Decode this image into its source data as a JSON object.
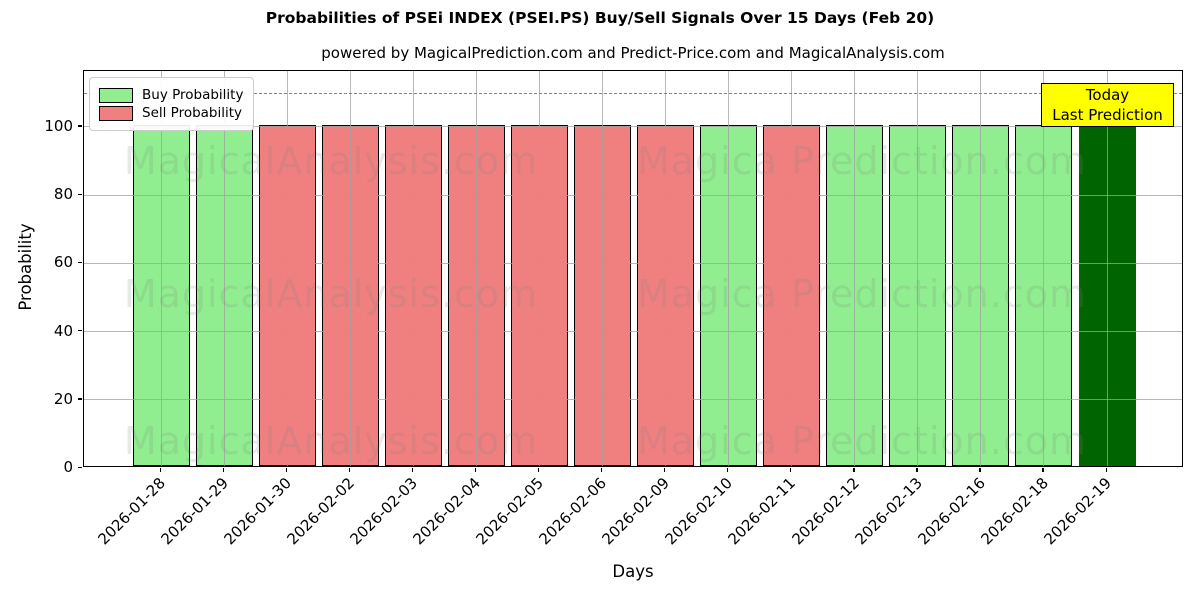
{
  "title": "Probabilities of PSEi INDEX (PSEI.PS) Buy/Sell Signals Over 15 Days (Feb 20)",
  "subtitle": "powered by MagicalPrediction.com and Predict-Price.com and MagicalAnalysis.com",
  "legend": {
    "buy_label": "Buy Probability",
    "sell_label": "Sell Probability"
  },
  "annotation": {
    "line1": "Today",
    "line2": "Last Prediction"
  },
  "axes": {
    "xlabel": "Days",
    "ylabel": "Probability"
  },
  "watermarks": {
    "left_text": "MagicalAnalysis.com",
    "right_text": "Magica Prediction.com"
  },
  "colors": {
    "buy": "#90EE90",
    "sell": "#F08080",
    "today": "#006400",
    "bar_edge": "#000000",
    "annotation_bg": "#FFFF00",
    "watermark": "rgba(128,128,128,0.18)",
    "grid": "rgba(160,160,160,0.75)",
    "dashed_guide": "#858585"
  },
  "chart_data": {
    "type": "bar",
    "title": "Probabilities of PSEi INDEX (PSEI.PS) Buy/Sell Signals Over 15 Days (Feb 20)",
    "xlabel": "Days",
    "ylabel": "Probability",
    "ylim": [
      0,
      116.4
    ],
    "yticks": [
      0,
      20,
      40,
      60,
      80,
      100
    ],
    "dashed_guide_y": 110,
    "grid": true,
    "legend_position": "upper left",
    "categories": [
      "2026-01-28",
      "2026-01-29",
      "2026-01-30",
      "2026-02-02",
      "2026-02-03",
      "2026-02-04",
      "2026-02-05",
      "2026-02-06",
      "2026-02-09",
      "2026-02-10",
      "2026-02-11",
      "2026-02-12",
      "2026-02-13",
      "2026-02-16",
      "2026-02-18",
      "2026-02-19"
    ],
    "values": [
      100,
      100,
      100,
      100,
      100,
      100,
      100,
      100,
      100,
      100,
      100,
      100,
      100,
      100,
      100,
      100
    ],
    "bar_kinds": [
      "buy",
      "buy",
      "sell",
      "sell",
      "sell",
      "sell",
      "sell",
      "sell",
      "sell",
      "buy",
      "sell",
      "buy",
      "buy",
      "buy",
      "buy",
      "today"
    ],
    "series": [
      {
        "name": "Buy Probability",
        "values": [
          100,
          100,
          0,
          0,
          0,
          0,
          0,
          0,
          0,
          100,
          0,
          100,
          100,
          100,
          100,
          0
        ]
      },
      {
        "name": "Sell Probability",
        "values": [
          0,
          0,
          100,
          100,
          100,
          100,
          100,
          100,
          100,
          0,
          100,
          0,
          0,
          0,
          0,
          0
        ]
      },
      {
        "name": "Today Last Prediction",
        "values": [
          0,
          0,
          0,
          0,
          0,
          0,
          0,
          0,
          0,
          0,
          0,
          0,
          0,
          0,
          0,
          100
        ]
      }
    ]
  }
}
